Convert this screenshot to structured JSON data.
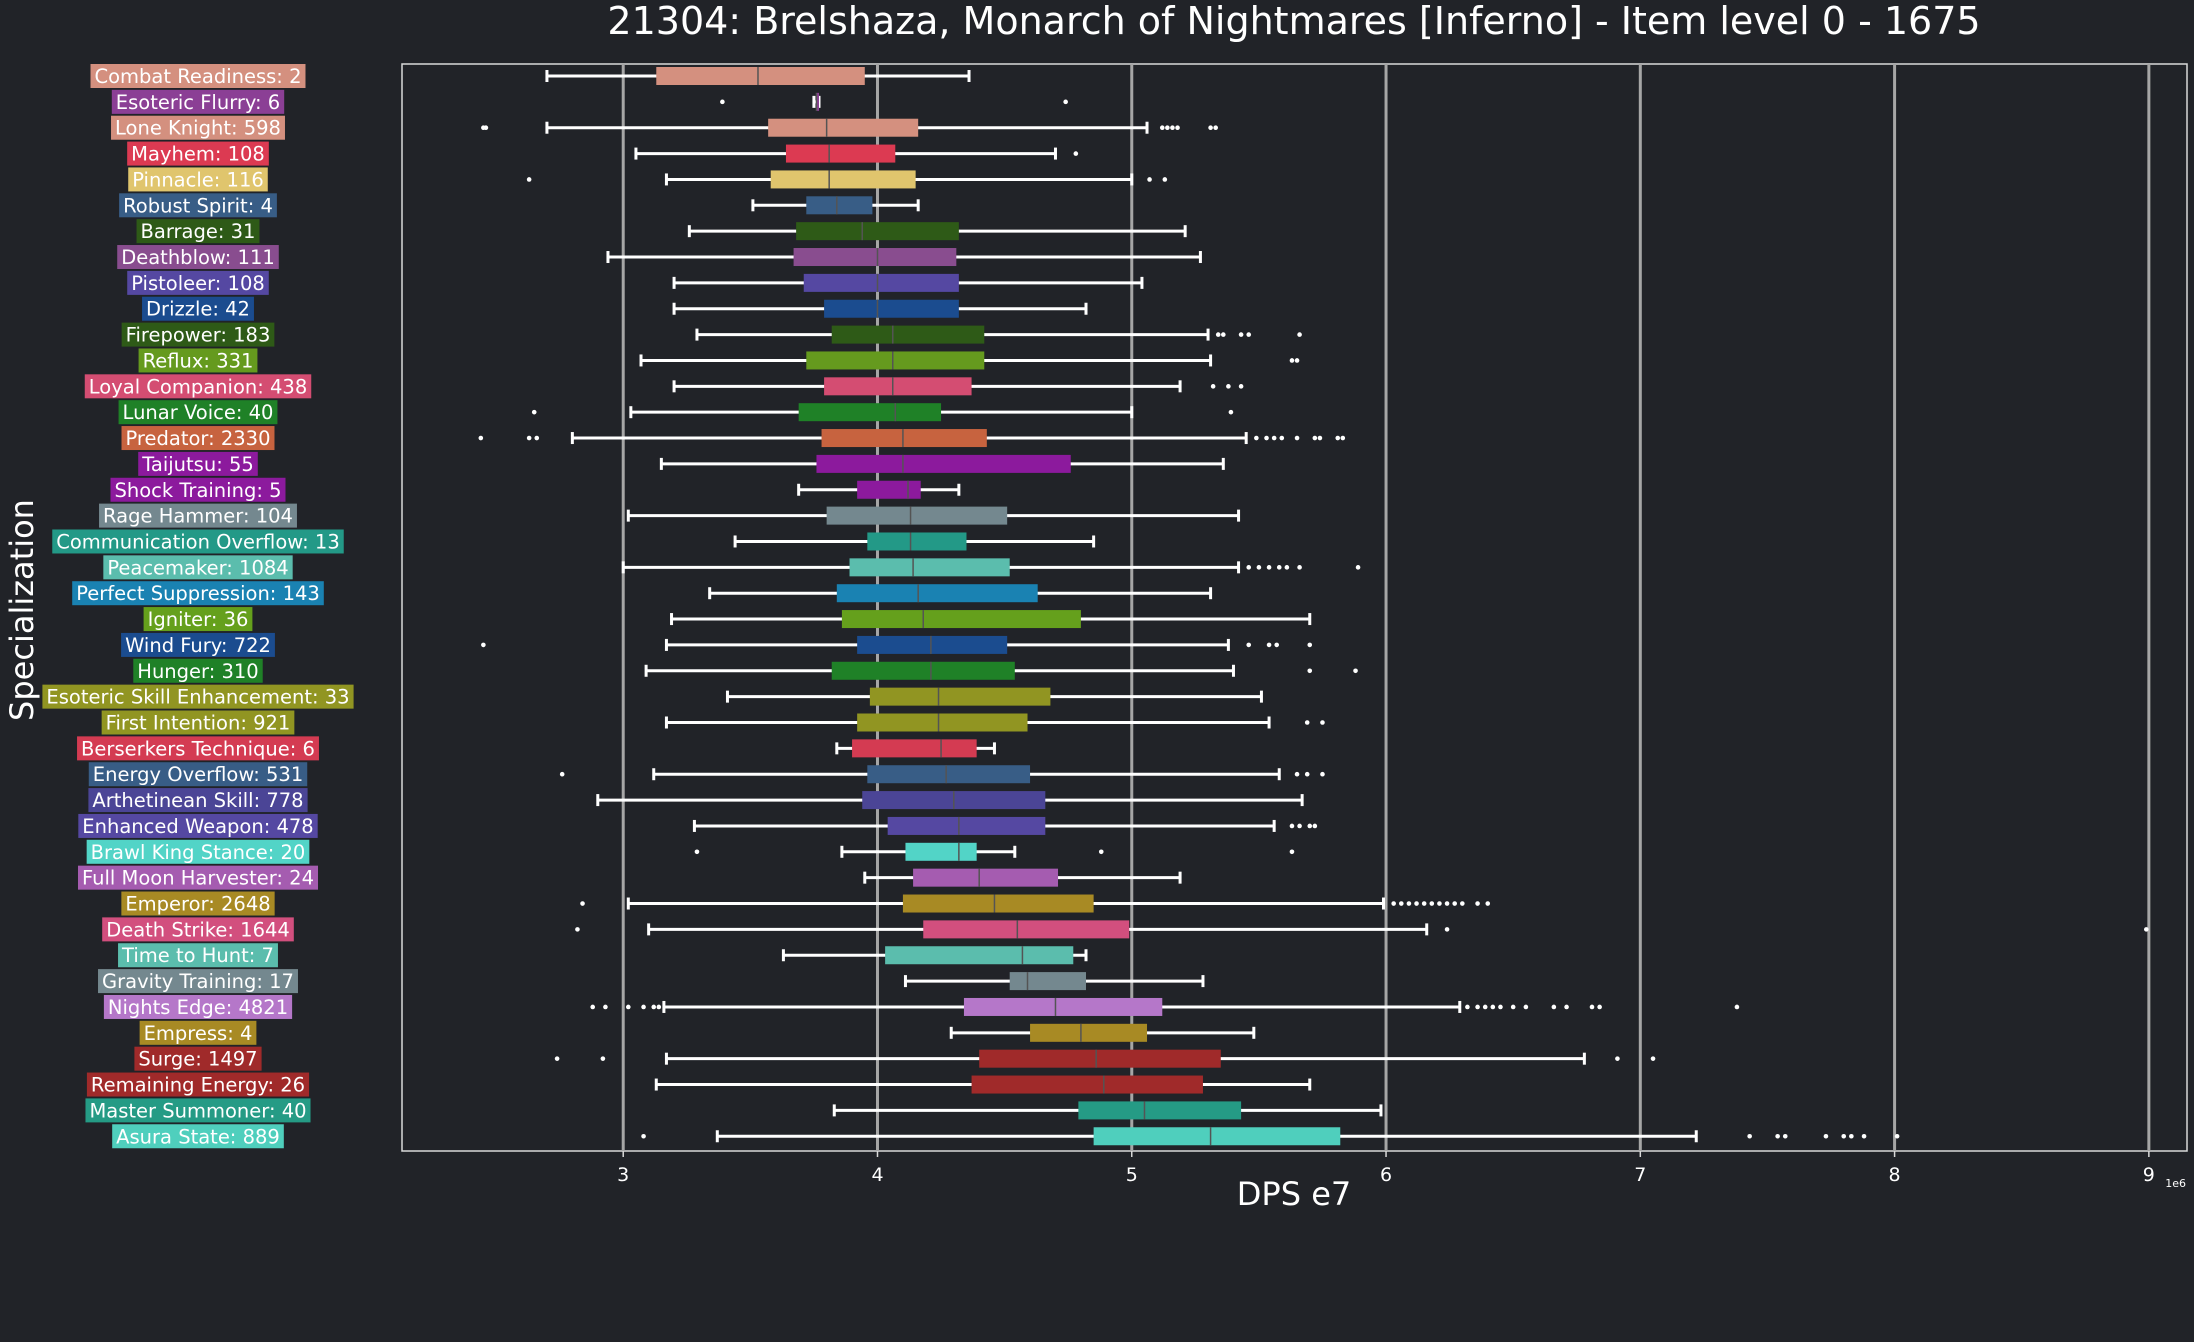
{
  "chart_data": {
    "type": "box",
    "orientation": "horizontal",
    "title": "21304: Brelshaza, Monarch of Nightmares [Inferno] - Item level 0 - 1675",
    "xlabel": "DPS e7",
    "ylabel": "Specialization",
    "x_offset_label": "1e6",
    "xlim": [
      21.3,
      91.5
    ],
    "xticks": [
      30,
      40,
      50,
      60,
      70,
      80,
      90
    ],
    "xtick_labels": [
      "3",
      "4",
      "5",
      "6",
      "7",
      "8",
      "9"
    ],
    "grid": "vertical",
    "series": [
      {
        "label": "Combat Readiness: 2",
        "color": "#d4907f",
        "whisker_low": 27.0,
        "q1": 31.3,
        "median": 35.3,
        "q3": 39.5,
        "whisker_high": 43.6,
        "outliers": []
      },
      {
        "label": "Esoteric Flurry: 6",
        "color": "#8b3f95",
        "whisker_low": 37.5,
        "q1": 37.6,
        "median": 37.6,
        "q3": 37.7,
        "whisker_high": 37.7,
        "outliers": [
          33.9,
          47.4
        ]
      },
      {
        "label": "Lone Knight: 598",
        "color": "#d4907f",
        "whisker_low": 27.0,
        "q1": 35.7,
        "median": 38.0,
        "q3": 41.6,
        "whisker_high": 50.6,
        "outliers": [
          24.5,
          24.6,
          51.2,
          51.4,
          51.6,
          51.8,
          53.1,
          53.3
        ]
      },
      {
        "label": "Mayhem: 108",
        "color": "#dc3a52",
        "whisker_low": 30.5,
        "q1": 36.4,
        "median": 38.1,
        "q3": 40.7,
        "whisker_high": 47.0,
        "outliers": [
          47.8
        ]
      },
      {
        "label": "Pinnacle: 116",
        "color": "#e0c56d",
        "whisker_low": 31.7,
        "q1": 35.8,
        "median": 38.1,
        "q3": 41.5,
        "whisker_high": 50.0,
        "outliers": [
          26.3,
          50.7,
          51.3
        ]
      },
      {
        "label": "Robust Spirit: 4",
        "color": "#385d86",
        "whisker_low": 35.1,
        "q1": 37.2,
        "median": 38.4,
        "q3": 39.8,
        "whisker_high": 41.6,
        "outliers": []
      },
      {
        "label": "Barrage: 31",
        "color": "#2e5a17",
        "whisker_low": 32.6,
        "q1": 36.8,
        "median": 39.4,
        "q3": 43.2,
        "whisker_high": 52.1,
        "outliers": []
      },
      {
        "label": "Deathblow: 111",
        "color": "#894d8f",
        "whisker_low": 29.4,
        "q1": 36.7,
        "median": 40.0,
        "q3": 43.1,
        "whisker_high": 52.7,
        "outliers": []
      },
      {
        "label": "Pistoleer: 108",
        "color": "#5548a2",
        "whisker_low": 32.0,
        "q1": 37.1,
        "median": 40.0,
        "q3": 43.2,
        "whisker_high": 50.4,
        "outliers": []
      },
      {
        "label": "Drizzle: 42",
        "color": "#1b4c8f",
        "whisker_low": 32.0,
        "q1": 37.9,
        "median": 40.0,
        "q3": 43.2,
        "whisker_high": 48.2,
        "outliers": []
      },
      {
        "label": "Firepower: 183",
        "color": "#2e5a17",
        "whisker_low": 32.9,
        "q1": 38.2,
        "median": 40.6,
        "q3": 44.2,
        "whisker_high": 53.0,
        "outliers": [
          53.4,
          53.6,
          54.3,
          54.6,
          56.6
        ]
      },
      {
        "label": "Reflux: 331",
        "color": "#659a1e",
        "whisker_low": 30.7,
        "q1": 37.2,
        "median": 40.6,
        "q3": 44.2,
        "whisker_high": 53.1,
        "outliers": [
          56.3,
          56.5
        ]
      },
      {
        "label": "Loyal Companion: 438",
        "color": "#d44d72",
        "whisker_low": 32.0,
        "q1": 37.9,
        "median": 40.6,
        "q3": 43.7,
        "whisker_high": 51.9,
        "outliers": [
          53.2,
          53.8,
          54.3
        ]
      },
      {
        "label": "Lunar Voice: 40",
        "color": "#1f8127",
        "whisker_low": 30.3,
        "q1": 36.9,
        "median": 40.7,
        "q3": 42.5,
        "whisker_high": 50.0,
        "outliers": [
          26.5,
          53.9
        ]
      },
      {
        "label": "Predator: 2330",
        "color": "#c7633f",
        "whisker_low": 28.0,
        "q1": 37.8,
        "median": 41.0,
        "q3": 44.3,
        "whisker_high": 54.5,
        "outliers": [
          24.4,
          26.3,
          26.6,
          54.9,
          55.3,
          55.6,
          55.9,
          56.5,
          57.2,
          57.4,
          58.1,
          58.3
        ]
      },
      {
        "label": "Taijutsu: 55",
        "color": "#8c1a9d",
        "whisker_low": 31.5,
        "q1": 37.6,
        "median": 41.0,
        "q3": 47.6,
        "whisker_high": 53.6,
        "outliers": []
      },
      {
        "label": "Shock Training: 5",
        "color": "#8c1a9d",
        "whisker_low": 36.9,
        "q1": 39.2,
        "median": 41.2,
        "q3": 41.7,
        "whisker_high": 43.2,
        "outliers": []
      },
      {
        "label": "Rage Hammer: 104",
        "color": "#74888f",
        "whisker_low": 30.2,
        "q1": 38.0,
        "median": 41.3,
        "q3": 45.1,
        "whisker_high": 54.2,
        "outliers": []
      },
      {
        "label": "Communication Overflow: 13",
        "color": "#239987",
        "whisker_low": 34.4,
        "q1": 39.6,
        "median": 41.3,
        "q3": 43.5,
        "whisker_high": 48.5,
        "outliers": []
      },
      {
        "label": "Peacemaker: 1084",
        "color": "#5bbdad",
        "whisker_low": 30.0,
        "q1": 38.9,
        "median": 41.4,
        "q3": 45.2,
        "whisker_high": 54.2,
        "outliers": [
          54.6,
          55.0,
          55.4,
          55.8,
          56.1,
          56.6,
          58.9
        ]
      },
      {
        "label": "Perfect Suppression: 143",
        "color": "#1a82b2",
        "whisker_low": 33.4,
        "q1": 38.4,
        "median": 41.6,
        "q3": 46.3,
        "whisker_high": 53.1,
        "outliers": []
      },
      {
        "label": "Igniter: 36",
        "color": "#65a01c",
        "whisker_low": 31.9,
        "q1": 38.6,
        "median": 41.8,
        "q3": 48.0,
        "whisker_high": 57.0,
        "outliers": []
      },
      {
        "label": "Wind Fury: 722",
        "color": "#1b4c8f",
        "whisker_low": 31.7,
        "q1": 39.2,
        "median": 42.1,
        "q3": 45.1,
        "whisker_high": 53.8,
        "outliers": [
          24.5,
          54.6,
          55.4,
          55.7,
          57.0
        ]
      },
      {
        "label": "Hunger: 310",
        "color": "#1f8127",
        "whisker_low": 30.9,
        "q1": 38.2,
        "median": 42.1,
        "q3": 45.4,
        "whisker_high": 54.0,
        "outliers": [
          57.0,
          58.8
        ]
      },
      {
        "label": "Esoteric Skill Enhancement: 33",
        "color": "#919522",
        "whisker_low": 34.1,
        "q1": 39.7,
        "median": 42.4,
        "q3": 46.8,
        "whisker_high": 55.1,
        "outliers": []
      },
      {
        "label": "First Intention: 921",
        "color": "#919522",
        "whisker_low": 31.7,
        "q1": 39.2,
        "median": 42.4,
        "q3": 45.9,
        "whisker_high": 55.4,
        "outliers": [
          56.9,
          57.5
        ]
      },
      {
        "label": "Berserkers Technique: 6",
        "color": "#d43b52",
        "whisker_low": 38.4,
        "q1": 39.0,
        "median": 42.5,
        "q3": 43.9,
        "whisker_high": 44.6,
        "outliers": []
      },
      {
        "label": "Energy Overflow: 531",
        "color": "#385d86",
        "whisker_low": 31.2,
        "q1": 39.6,
        "median": 42.7,
        "q3": 46.0,
        "whisker_high": 55.8,
        "outliers": [
          27.6,
          56.5,
          56.9,
          57.5
        ]
      },
      {
        "label": "Arthetinean Skill: 778",
        "color": "#4b4596",
        "whisker_low": 29.0,
        "q1": 39.4,
        "median": 43.0,
        "q3": 46.6,
        "whisker_high": 56.7,
        "outliers": []
      },
      {
        "label": "Enhanced Weapon: 478",
        "color": "#5548a2",
        "whisker_low": 32.8,
        "q1": 40.4,
        "median": 43.2,
        "q3": 46.6,
        "whisker_high": 55.6,
        "outliers": [
          56.3,
          56.6,
          57.0,
          57.2
        ]
      },
      {
        "label": "Brawl King Stance: 20",
        "color": "#52d4c7",
        "whisker_low": 38.6,
        "q1": 41.1,
        "median": 43.2,
        "q3": 43.9,
        "whisker_high": 45.4,
        "outliers": [
          32.9,
          48.8,
          56.3
        ]
      },
      {
        "label": "Full Moon Harvester: 24",
        "color": "#a55cb0",
        "whisker_low": 39.5,
        "q1": 41.4,
        "median": 44.0,
        "q3": 47.1,
        "whisker_high": 51.9,
        "outliers": []
      },
      {
        "label": "Emperor: 2648",
        "color": "#a88a24",
        "whisker_low": 30.2,
        "q1": 41.0,
        "median": 44.6,
        "q3": 48.5,
        "whisker_high": 59.9,
        "outliers": [
          28.4,
          60.3,
          60.6,
          60.9,
          61.2,
          61.5,
          61.8,
          62.1,
          62.4,
          62.7,
          63.0,
          63.6,
          64.0
        ]
      },
      {
        "label": "Death Strike: 1644",
        "color": "#d24f7e",
        "whisker_low": 31.0,
        "q1": 41.8,
        "median": 45.5,
        "q3": 49.9,
        "whisker_high": 61.6,
        "outliers": [
          28.2,
          62.4,
          89.9
        ]
      },
      {
        "label": "Time to Hunt: 7",
        "color": "#5bbdad",
        "whisker_low": 36.3,
        "q1": 40.3,
        "median": 45.7,
        "q3": 47.7,
        "whisker_high": 48.2,
        "outliers": []
      },
      {
        "label": "Gravity Training: 17",
        "color": "#74888f",
        "whisker_low": 41.1,
        "q1": 45.2,
        "median": 45.9,
        "q3": 48.2,
        "whisker_high": 52.8,
        "outliers": []
      },
      {
        "label": "Nights Edge: 4821",
        "color": "#b577c9",
        "whisker_low": 31.6,
        "q1": 43.4,
        "median": 47.0,
        "q3": 51.2,
        "whisker_high": 62.9,
        "outliers": [
          28.8,
          29.3,
          30.2,
          30.8,
          31.2,
          31.4,
          63.2,
          63.6,
          63.9,
          64.2,
          64.5,
          65.0,
          65.5,
          66.6,
          67.1,
          68.1,
          68.4,
          73.8
        ]
      },
      {
        "label": "Empress: 4",
        "color": "#a88a24",
        "whisker_low": 42.9,
        "q1": 46.0,
        "median": 48.0,
        "q3": 50.6,
        "whisker_high": 54.8,
        "outliers": []
      },
      {
        "label": "Surge: 1497",
        "color": "#a02a2a",
        "whisker_low": 31.7,
        "q1": 44.0,
        "median": 48.6,
        "q3": 53.5,
        "whisker_high": 67.8,
        "outliers": [
          27.4,
          29.2,
          69.1,
          70.5
        ]
      },
      {
        "label": "Remaining Energy: 26",
        "color": "#a02a2a",
        "whisker_low": 31.3,
        "q1": 43.7,
        "median": 48.9,
        "q3": 52.8,
        "whisker_high": 57.0,
        "outliers": []
      },
      {
        "label": "Master Summoner: 40",
        "color": "#259b85",
        "whisker_low": 38.3,
        "q1": 47.9,
        "median": 50.5,
        "q3": 54.3,
        "whisker_high": 59.8,
        "outliers": []
      },
      {
        "label": "Asura State: 889",
        "color": "#4fcfbd",
        "whisker_low": 33.7,
        "q1": 48.5,
        "median": 53.1,
        "q3": 58.2,
        "whisker_high": 72.2,
        "outliers": [
          30.8,
          74.3,
          75.4,
          75.7,
          77.3,
          78.0,
          78.3,
          78.8,
          80.1
        ]
      }
    ]
  }
}
